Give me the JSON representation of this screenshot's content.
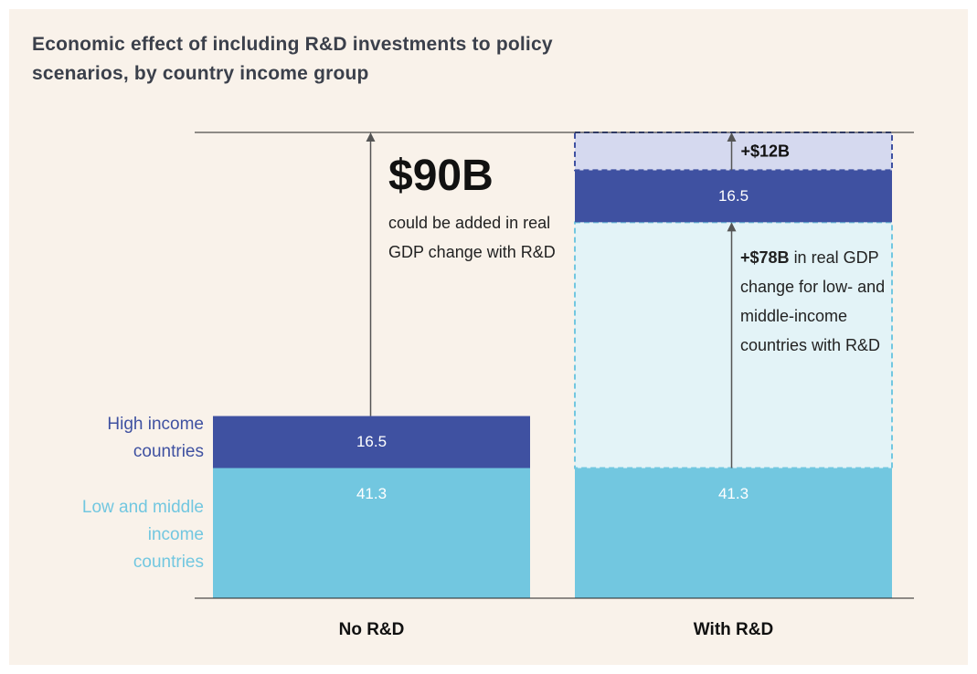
{
  "chart_data": {
    "type": "bar",
    "stacked": true,
    "title": "Economic effect of including R&D investments to policy scenarios, by country income group",
    "categories": [
      "No R&D",
      "With R&D"
    ],
    "ylim": [
      0,
      147.8
    ],
    "series": [
      {
        "name": "Low and middle income countries",
        "color": "#72c7e0",
        "values": [
          41.3,
          41.3
        ]
      },
      {
        "color": "#e3f3f7",
        "edge_color": "#72c7e0",
        "dashed": true,
        "values": [
          null,
          78
        ],
        "value_labels": [
          null,
          "+$78B"
        ]
      },
      {
        "name": "High income countries",
        "color": "#3f51a1",
        "values": [
          16.5,
          16.5
        ]
      },
      {
        "color": "#d5d9ef",
        "edge_color": "#3f51a1",
        "dashed": true,
        "values": [
          null,
          12
        ],
        "value_labels": [
          null,
          "+$12B"
        ]
      }
    ],
    "annotations": [
      {
        "label": "$90B",
        "value": 90,
        "text": "could be added in real GDP change with R&D"
      },
      {
        "text": "in real GDP change for low- and middle-income countries with R&D"
      }
    ]
  }
}
